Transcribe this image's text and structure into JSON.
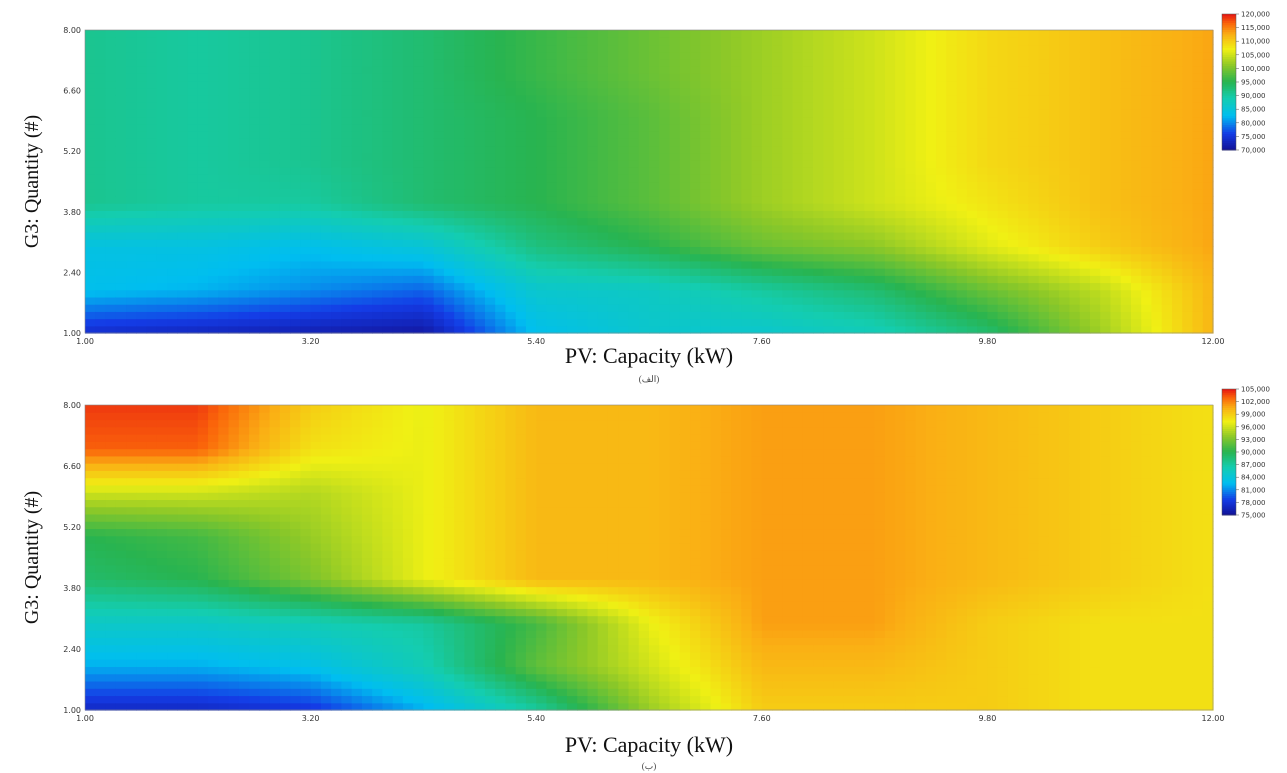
{
  "chart_data": [
    {
      "type": "heatmap",
      "caption": "(الف)",
      "xlabel": "PV: Capacity (kW)",
      "ylabel": "G3: Quantity (#)",
      "xlim": [
        1.0,
        12.0
      ],
      "ylim": [
        1.0,
        8.0
      ],
      "x_ticks": [
        "1.00",
        "3.20",
        "5.40",
        "7.60",
        "9.80",
        "12.00"
      ],
      "x_tick_values": [
        1.0,
        3.2,
        5.4,
        7.6,
        9.8,
        12.0
      ],
      "y_ticks": [
        "1.00",
        "2.40",
        "3.80",
        "5.20",
        "6.60",
        "8.00"
      ],
      "y_tick_values": [
        1.0,
        2.4,
        3.8,
        5.2,
        6.6,
        8.0
      ],
      "colorbar": [
        "120,000",
        "115,000",
        "110,000",
        "105,000",
        "100,000",
        "95,000",
        "90,000",
        "85,000",
        "80,000",
        "75,000",
        "70,000"
      ],
      "zlim": [
        70000,
        120000
      ],
      "x": [
        1.0,
        2.1,
        3.2,
        4.3,
        5.4,
        6.5,
        7.6,
        8.7,
        9.8,
        10.9,
        12.0
      ],
      "y": [
        1.0,
        2.0,
        3.0,
        4.0,
        5.0,
        6.0,
        7.0,
        8.0
      ],
      "z": [
        [
          74000,
          73000,
          72000,
          71000,
          83000,
          86000,
          86000,
          88000,
          93000,
          102000,
          112000
        ],
        [
          83000,
          82000,
          80000,
          78000,
          86000,
          87000,
          90000,
          93000,
          99000,
          104000,
          112000
        ],
        [
          84000,
          84000,
          83000,
          85000,
          92000,
          95000,
          99000,
          101000,
          106000,
          110000,
          113000
        ],
        [
          91000,
          90000,
          90000,
          93000,
          95000,
          98000,
          102000,
          105000,
          108000,
          111000,
          113000
        ],
        [
          91000,
          90000,
          91000,
          93000,
          95000,
          98000,
          102000,
          105000,
          109000,
          111000,
          113000
        ],
        [
          91000,
          90000,
          91000,
          93000,
          95000,
          98000,
          102000,
          105000,
          109000,
          111000,
          113000
        ],
        [
          91000,
          90000,
          91000,
          93000,
          96000,
          99000,
          102000,
          105000,
          109000,
          111000,
          113000
        ],
        [
          91000,
          90000,
          91000,
          93000,
          96000,
          99000,
          102000,
          105000,
          109000,
          111000,
          113000
        ]
      ]
    },
    {
      "type": "heatmap",
      "caption": "(ب)",
      "xlabel": "PV: Capacity (kW)",
      "ylabel": "G3: Quantity (#)",
      "xlim": [
        1.0,
        12.0
      ],
      "ylim": [
        1.0,
        8.0
      ],
      "x_ticks": [
        "1.00",
        "3.20",
        "5.40",
        "7.60",
        "9.80",
        "12.00"
      ],
      "x_tick_values": [
        1.0,
        3.2,
        5.4,
        7.6,
        9.8,
        12.0
      ],
      "y_ticks": [
        "1.00",
        "2.40",
        "3.80",
        "5.20",
        "6.60",
        "8.00"
      ],
      "y_tick_values": [
        1.0,
        2.4,
        3.8,
        5.2,
        6.6,
        8.0
      ],
      "colorbar": [
        "105,000",
        "102,000",
        "99,000",
        "96,000",
        "93,000",
        "90,000",
        "87,000",
        "84,000",
        "81,000",
        "78,000",
        "75,000"
      ],
      "zlim": [
        75000,
        105000
      ],
      "x": [
        1.0,
        2.1,
        3.2,
        4.3,
        5.4,
        6.5,
        7.6,
        8.7,
        9.8,
        10.9,
        12.0
      ],
      "y": [
        1.0,
        2.0,
        3.0,
        4.0,
        5.0,
        6.0,
        7.0,
        8.0
      ],
      "z": [
        [
          77000,
          77000,
          78000,
          82000,
          87000,
          94000,
          99000,
          99000,
          99000,
          98000,
          98000
        ],
        [
          82000,
          82000,
          83000,
          86000,
          92000,
          96000,
          100000,
          100000,
          99000,
          98000,
          98000
        ],
        [
          85000,
          85000,
          86000,
          87000,
          91000,
          97000,
          101000,
          101000,
          99000,
          98000,
          98000
        ],
        [
          89000,
          90000,
          93000,
          97000,
          100000,
          100000,
          101000,
          101000,
          100000,
          99000,
          98000
        ],
        [
          90000,
          91000,
          94000,
          97000,
          100000,
          100000,
          101000,
          101000,
          100000,
          99000,
          98000
        ],
        [
          96000,
          96000,
          95000,
          97000,
          100000,
          100000,
          101000,
          101000,
          100000,
          99000,
          98000
        ],
        [
          103000,
          103000,
          98000,
          97000,
          100000,
          100000,
          101000,
          101000,
          100000,
          99000,
          98000
        ],
        [
          104000,
          104000,
          99000,
          97000,
          100000,
          100000,
          101000,
          101000,
          100000,
          99000,
          98000
        ]
      ]
    }
  ]
}
